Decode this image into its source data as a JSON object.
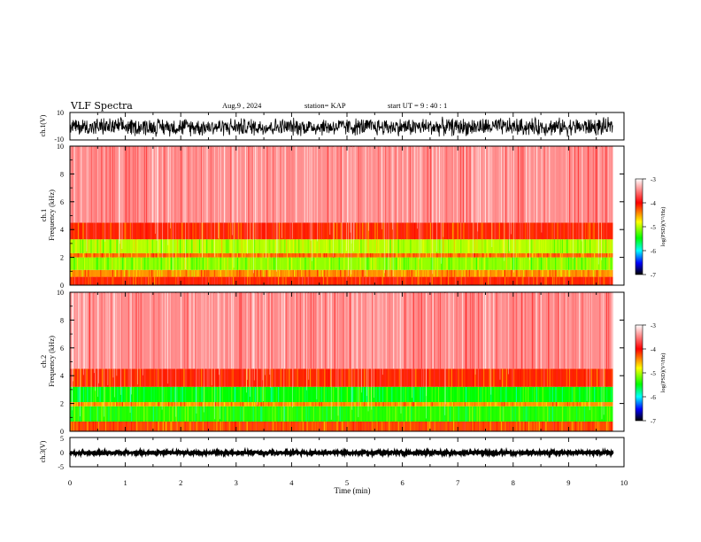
{
  "header": {
    "title": "VLF Spectra",
    "date": "Aug.9 , 2024",
    "station": "station= KAP",
    "start": "start UT = 9 : 40 : 1"
  },
  "colorbar": {
    "label": "log(PSD)(V²/Hz)",
    "ticks": [
      "-3",
      "-4",
      "-5",
      "-6",
      "-7"
    ],
    "colors": [
      "#ffffff",
      "#ff0000",
      "#ffff00",
      "#00ff00",
      "#00ffff",
      "#0000ff",
      "#000000"
    ]
  },
  "chart_data": [
    {
      "type": "line",
      "name": "ch.1 waveform",
      "ylabel": "ch.1(V)",
      "ylim": [
        -10,
        10
      ],
      "y_tick_labels": [
        "10",
        "-10"
      ],
      "xlim": [
        0,
        10
      ],
      "approx_range": [
        -8,
        7
      ],
      "x_extent_min": 9.8
    },
    {
      "type": "heatmap",
      "ylabel": "ch.1\nFrequency (kHz)",
      "ylim": [
        0,
        10
      ],
      "y_tick_labels": [
        "0",
        "2",
        "4",
        "6",
        "8",
        "10"
      ],
      "xlim": [
        0,
        10
      ],
      "x_extent_min": 9.8,
      "zlim": [
        -7,
        -3
      ],
      "bands_kHz": [
        {
          "from": 0,
          "to": 0.6,
          "log_psd": -4.0
        },
        {
          "from": 0.6,
          "to": 1.1,
          "log_psd": -4.3
        },
        {
          "from": 1.1,
          "to": 2.0,
          "log_psd": -4.9
        },
        {
          "from": 2.0,
          "to": 2.3,
          "log_psd": -4.2
        },
        {
          "from": 2.3,
          "to": 3.3,
          "log_psd": -4.8
        },
        {
          "from": 3.3,
          "to": 4.5,
          "log_psd": -4.0
        },
        {
          "from": 4.5,
          "to": 10,
          "log_psd": -3.4
        }
      ]
    },
    {
      "type": "heatmap",
      "ylabel": "ch.2\nFrequency (kHz)",
      "ylim": [
        0,
        10
      ],
      "y_tick_labels": [
        "0",
        "2",
        "4",
        "6",
        "8",
        "10"
      ],
      "xlim": [
        0,
        10
      ],
      "x_extent_min": 9.8,
      "zlim": [
        -7,
        -3
      ],
      "bands_kHz": [
        {
          "from": 0,
          "to": 0.7,
          "log_psd": -4.1
        },
        {
          "from": 0.7,
          "to": 1.8,
          "log_psd": -5.2
        },
        {
          "from": 1.8,
          "to": 2.1,
          "log_psd": -4.3
        },
        {
          "from": 2.1,
          "to": 3.2,
          "log_psd": -5.3
        },
        {
          "from": 3.2,
          "to": 4.5,
          "log_psd": -4.0
        },
        {
          "from": 4.5,
          "to": 10,
          "log_psd": -3.4
        }
      ]
    },
    {
      "type": "line",
      "name": "ch.3 waveform",
      "ylabel": "ch.3(V)",
      "ylim": [
        -5,
        5
      ],
      "y_tick_labels": [
        "5",
        "0",
        "-5"
      ],
      "xlim": [
        0,
        10
      ],
      "approx_range": [
        -0.8,
        0.4
      ],
      "x_extent_min": 9.8,
      "xlabel": "Time (min)",
      "x_tick_labels": [
        "0",
        "1",
        "2",
        "3",
        "4",
        "5",
        "6",
        "7",
        "8",
        "9",
        "10"
      ]
    }
  ]
}
